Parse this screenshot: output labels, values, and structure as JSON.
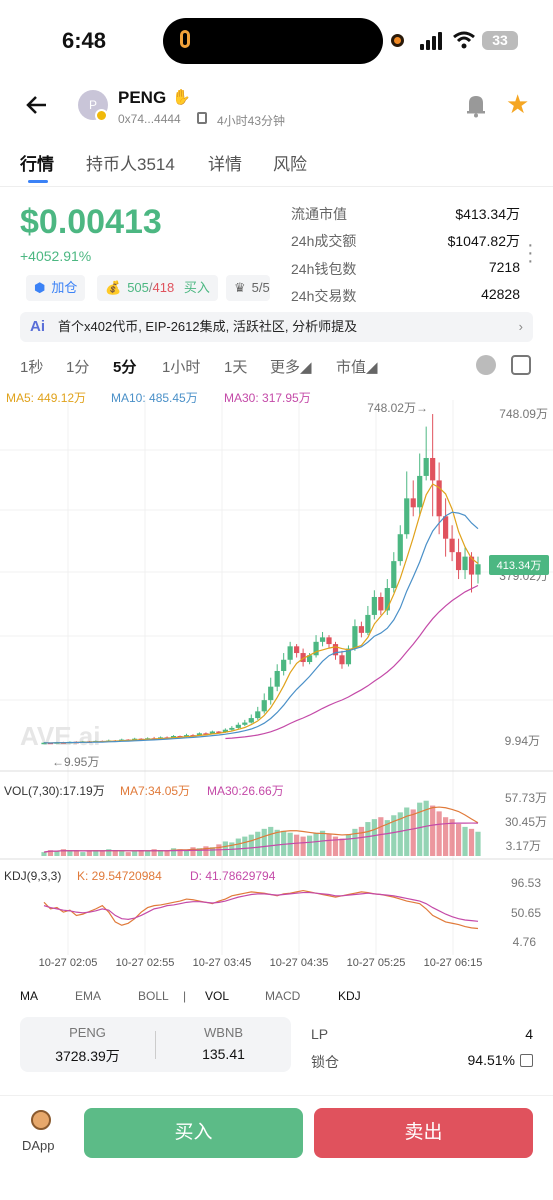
{
  "status_bar": {
    "time": "6:48",
    "battery": "33"
  },
  "header": {
    "avatar_letter": "P",
    "token_name": "PENG",
    "address": "0x74...4444",
    "age": "4小时43分钟"
  },
  "tabs": [
    {
      "label": "行情"
    },
    {
      "label": "持币人3514"
    },
    {
      "label": "详情"
    },
    {
      "label": "风险"
    }
  ],
  "price": {
    "value": "$0.00413",
    "change": "+4052.91%"
  },
  "pills": {
    "add_label": "加仓",
    "buys": "505",
    "slash": "/",
    "sells": "418",
    "buy_word": "买入",
    "third": "5/5"
  },
  "stats": [
    {
      "label": "流通市值",
      "value": "$413.34万"
    },
    {
      "label": "24h成交额",
      "value": "$1047.82万"
    },
    {
      "label": "24h钱包数",
      "value": "7218"
    },
    {
      "label": "24h交易数",
      "value": "42828"
    }
  ],
  "ai_bar": {
    "logo": "Ai",
    "text": "首个x402代币, EIP-2612集成, 活跃社区, 分析师提及",
    "chevron": "›"
  },
  "timeframes": [
    {
      "label": "1秒"
    },
    {
      "label": "1分"
    },
    {
      "label": "5分"
    },
    {
      "label": "1小时"
    },
    {
      "label": "1天"
    },
    {
      "label": "更多◢"
    },
    {
      "label": "市值◢"
    }
  ],
  "ma_legend": {
    "ma5": "MA5: 449.12万",
    "ma10": "MA10: 485.45万",
    "ma30": "MA30: 317.95万",
    "ma5_color": "#e0a21b",
    "ma10_color": "#4a90c8",
    "ma30_color": "#c44aa8"
  },
  "price_axis": {
    "top": "748.09万",
    "current": "413.34万",
    "mid": "379.02万",
    "bottom": "9.94万",
    "high_marker": "748.02万→",
    "low_marker": "←9.95万",
    "watermark": "AVE.ai"
  },
  "vol_legend": {
    "vol": "VOL(7,30):17.19万",
    "ma7": "MA7:34.05万",
    "ma30": "MA30:26.66万",
    "axis_top": "57.73万",
    "axis_mid": "30.45万",
    "axis_bottom": "3.17万"
  },
  "kdj_legend": {
    "kdj": "KDJ(9,3,3)",
    "k": "K: 29.54720984",
    "d": "D: 41.78629794",
    "axis_top": "96.53",
    "axis_mid": "50.65",
    "axis_bottom": "4.76"
  },
  "time_axis": [
    "10-27 02:05",
    "10-27 02:55",
    "10-27 03:45",
    "10-27 04:35",
    "10-27 05:25",
    "10-27 06:15"
  ],
  "indicator_tabs": [
    {
      "label": "MA"
    },
    {
      "label": "EMA"
    },
    {
      "label": "BOLL"
    },
    {
      "label": "|"
    },
    {
      "label": "VOL"
    },
    {
      "label": "MACD"
    },
    {
      "label": "KDJ"
    }
  ],
  "pool": {
    "token1": "PENG",
    "amount1": "3728.39万",
    "token2": "WBNB",
    "amount2": "135.41",
    "lp_label": "LP",
    "lp_value": "4",
    "lock_label": "锁仓",
    "lock_value": "94.51%"
  },
  "bottom": {
    "dapp": "DApp",
    "buy": "买入",
    "sell": "卖出"
  },
  "colors": {
    "up": "#4cb782",
    "down": "#e0525d",
    "accent": "#3b82f6"
  },
  "chart_data": {
    "type": "candlestick",
    "price_range": [
      9.94,
      748.09
    ],
    "last_value": 413.34,
    "candles": [
      [
        14,
        15,
        13.5,
        16
      ],
      [
        15,
        14,
        13,
        15.5
      ],
      [
        14,
        16,
        13.5,
        17
      ],
      [
        16,
        15,
        14.5,
        17
      ],
      [
        15,
        17,
        14,
        18
      ],
      [
        17,
        16,
        15,
        18
      ],
      [
        16,
        18,
        15.5,
        19
      ],
      [
        18,
        17,
        16,
        19
      ],
      [
        17,
        19,
        16,
        20
      ],
      [
        19,
        18,
        17,
        20
      ],
      [
        18,
        20,
        17,
        22
      ],
      [
        20,
        19,
        18,
        21
      ],
      [
        19,
        22,
        18,
        24
      ],
      [
        22,
        21,
        20,
        23
      ],
      [
        21,
        24,
        20,
        26
      ],
      [
        24,
        22,
        21,
        25
      ],
      [
        22,
        25,
        21,
        27
      ],
      [
        25,
        24,
        23,
        28
      ],
      [
        24,
        27,
        23,
        29
      ],
      [
        27,
        26,
        25,
        29
      ],
      [
        26,
        30,
        25,
        32
      ],
      [
        30,
        28,
        27,
        31
      ],
      [
        28,
        32,
        27,
        35
      ],
      [
        32,
        31,
        30,
        34
      ],
      [
        31,
        36,
        30,
        38
      ],
      [
        36,
        35,
        33,
        38
      ],
      [
        35,
        40,
        34,
        42
      ],
      [
        40,
        38,
        37,
        41
      ],
      [
        38,
        44,
        37,
        47
      ],
      [
        44,
        48,
        42,
        52
      ],
      [
        48,
        55,
        46,
        60
      ],
      [
        55,
        60,
        52,
        66
      ],
      [
        60,
        70,
        58,
        78
      ],
      [
        70,
        85,
        66,
        95
      ],
      [
        85,
        110,
        80,
        125
      ],
      [
        110,
        140,
        100,
        160
      ],
      [
        140,
        175,
        130,
        190
      ],
      [
        175,
        200,
        165,
        215
      ],
      [
        200,
        230,
        190,
        240
      ],
      [
        230,
        215,
        205,
        235
      ],
      [
        215,
        195,
        185,
        225
      ],
      [
        195,
        210,
        190,
        215
      ],
      [
        210,
        240,
        205,
        255
      ],
      [
        240,
        250,
        230,
        262
      ],
      [
        250,
        235,
        225,
        255
      ],
      [
        235,
        210,
        200,
        240
      ],
      [
        210,
        190,
        180,
        220
      ],
      [
        190,
        225,
        185,
        232
      ],
      [
        225,
        275,
        220,
        290
      ],
      [
        275,
        260,
        250,
        285
      ],
      [
        260,
        300,
        255,
        320
      ],
      [
        300,
        340,
        290,
        355
      ],
      [
        340,
        310,
        300,
        350
      ],
      [
        310,
        360,
        300,
        380
      ],
      [
        360,
        420,
        350,
        440
      ],
      [
        420,
        480,
        410,
        500
      ],
      [
        480,
        560,
        470,
        620
      ],
      [
        560,
        540,
        520,
        600
      ],
      [
        540,
        610,
        520,
        660
      ],
      [
        610,
        650,
        600,
        720
      ],
      [
        650,
        600,
        520,
        748
      ],
      [
        600,
        520,
        480,
        640
      ],
      [
        520,
        470,
        430,
        560
      ],
      [
        470,
        440,
        420,
        500
      ],
      [
        440,
        400,
        380,
        470
      ],
      [
        400,
        430,
        380,
        450
      ],
      [
        430,
        390,
        350,
        440
      ],
      [
        390,
        413,
        370,
        430
      ]
    ],
    "volumes": [
      4,
      6,
      5,
      7,
      5,
      6,
      4,
      5,
      6,
      5,
      7,
      6,
      5,
      4,
      5,
      6,
      5,
      7,
      6,
      5,
      8,
      7,
      6,
      9,
      8,
      10,
      9,
      12,
      15,
      14,
      18,
      20,
      22,
      25,
      28,
      30,
      27,
      26,
      24,
      22,
      20,
      21,
      24,
      26,
      23,
      20,
      18,
      22,
      28,
      30,
      35,
      38,
      40,
      37,
      42,
      45,
      50,
      48,
      55,
      57,
      52,
      46,
      40,
      38,
      33,
      30,
      28,
      25
    ],
    "kdj_k": [
      70,
      60,
      62,
      55,
      58,
      50,
      52,
      56,
      60,
      65,
      55,
      40,
      35,
      38,
      45,
      55,
      62,
      65,
      66,
      68,
      70,
      72,
      75,
      74,
      72,
      70,
      68,
      72,
      75,
      80,
      82,
      84,
      86,
      85,
      84,
      82,
      80,
      83,
      84,
      86,
      88,
      86,
      84,
      82,
      80,
      78,
      80,
      82,
      84,
      86,
      85,
      83,
      82,
      80,
      78,
      75,
      72,
      70,
      68,
      60,
      50,
      45,
      40,
      38,
      36,
      33,
      31,
      30
    ],
    "kdj_d": [
      65,
      62,
      60,
      58,
      57,
      55,
      54,
      55,
      57,
      60,
      58,
      50,
      45,
      44,
      46,
      50,
      55,
      60,
      62,
      65,
      66,
      68,
      70,
      71,
      71,
      70,
      69,
      70,
      72,
      75,
      78,
      80,
      82,
      83,
      83,
      82,
      81,
      82,
      83,
      84,
      85,
      85,
      84,
      83,
      82,
      80,
      80,
      81,
      82,
      83,
      84,
      83,
      82,
      81,
      80,
      78,
      76,
      74,
      72,
      68,
      62,
      57,
      52,
      48,
      45,
      43,
      42,
      41
    ]
  }
}
